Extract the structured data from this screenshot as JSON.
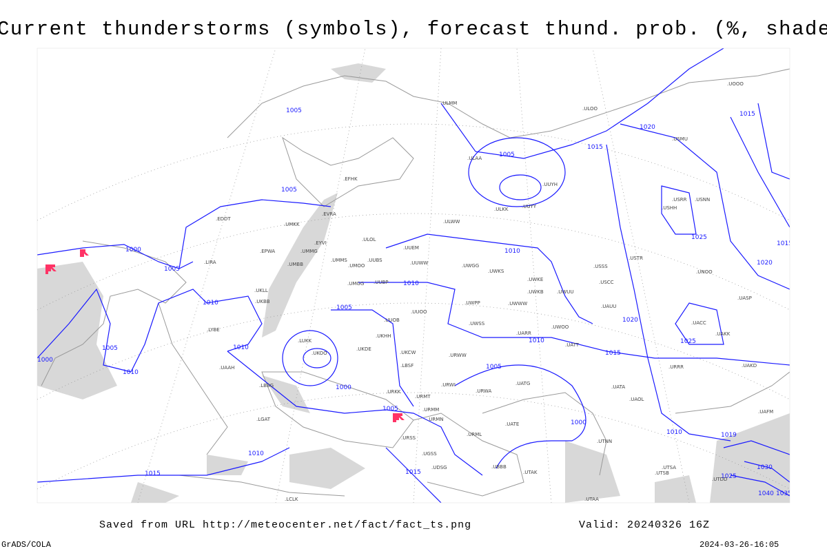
{
  "title": "Current thunderstorms (symbols), forecast thund. prob. (%, shaded)",
  "footer": {
    "saved_from": "Saved from URL http://meteocenter.net/fact/fact_ts.png",
    "valid": "Valid: 20240326 16Z",
    "software": "GrADS/COLA",
    "timestamp": "2024-03-26-16:05"
  },
  "colors": {
    "isobar": "#1a1aff",
    "coast": "#999999",
    "thunderstorm_symbol": "#ff3366",
    "shading": "#d8d8d8"
  },
  "isobar_labels": [
    "1005",
    "1005",
    "1000",
    "1005",
    "1010",
    "1005",
    "1010",
    "1005",
    "1000",
    "1010",
    "1005",
    "1000",
    "1010",
    "1015",
    "1020",
    "1015",
    "1010",
    "1015",
    "1020",
    "1025",
    "1020",
    "1025",
    "1010",
    "1015",
    "1030",
    "1025",
    "1040",
    "1035",
    "1015",
    "1010",
    "1005",
    "1000",
    "1010",
    "1015",
    "1019",
    "1005"
  ],
  "stations": [
    "ULMM",
    "ULOO",
    "USMU",
    "UOOO",
    "EFHK",
    "ULAA",
    "UUYH",
    "UUYY",
    "ULKK",
    "USRR",
    "USNN",
    "USHH",
    "EVRA",
    "ULOL",
    "UUEM",
    "ULWW",
    "EDDT",
    "UMKK",
    "EYVI",
    "UMMG",
    "EPWA",
    "UMBB",
    "UMMS",
    "UMOO",
    "UUBS",
    "UUWW",
    "UWGG",
    "UWKS",
    "USSS",
    "USTR",
    "UNOO",
    "UKLL",
    "UKBB",
    "UMGG",
    "UUBP",
    "UWKE",
    "UWKB",
    "UWUU",
    "USCC",
    "UACC",
    "UASP",
    "UUOO",
    "UWPP",
    "UWWW",
    "UAUU",
    "UUOB",
    "UWSS",
    "UARR",
    "UWOO",
    "UATT",
    "UAKK",
    "LIRA",
    "LYBE",
    "UKOO",
    "UKDE",
    "UKHH",
    "UKCW",
    "URWW",
    "LUKK",
    "URRR",
    "UAKD",
    "UAAH",
    "LBSF",
    "URKK",
    "URWI",
    "URMT",
    "URWA",
    "UATG",
    "UATA",
    "LBBG",
    "URMM",
    "URMN",
    "UAOL",
    "LGAT",
    "URSS",
    "URML",
    "UATE",
    "UTNN",
    "UGSS",
    "UDSG",
    "UBBB",
    "UTAK",
    "UTSA",
    "UTSB",
    "LCLK",
    "UTAA",
    "UAFM",
    "UTDD"
  ]
}
